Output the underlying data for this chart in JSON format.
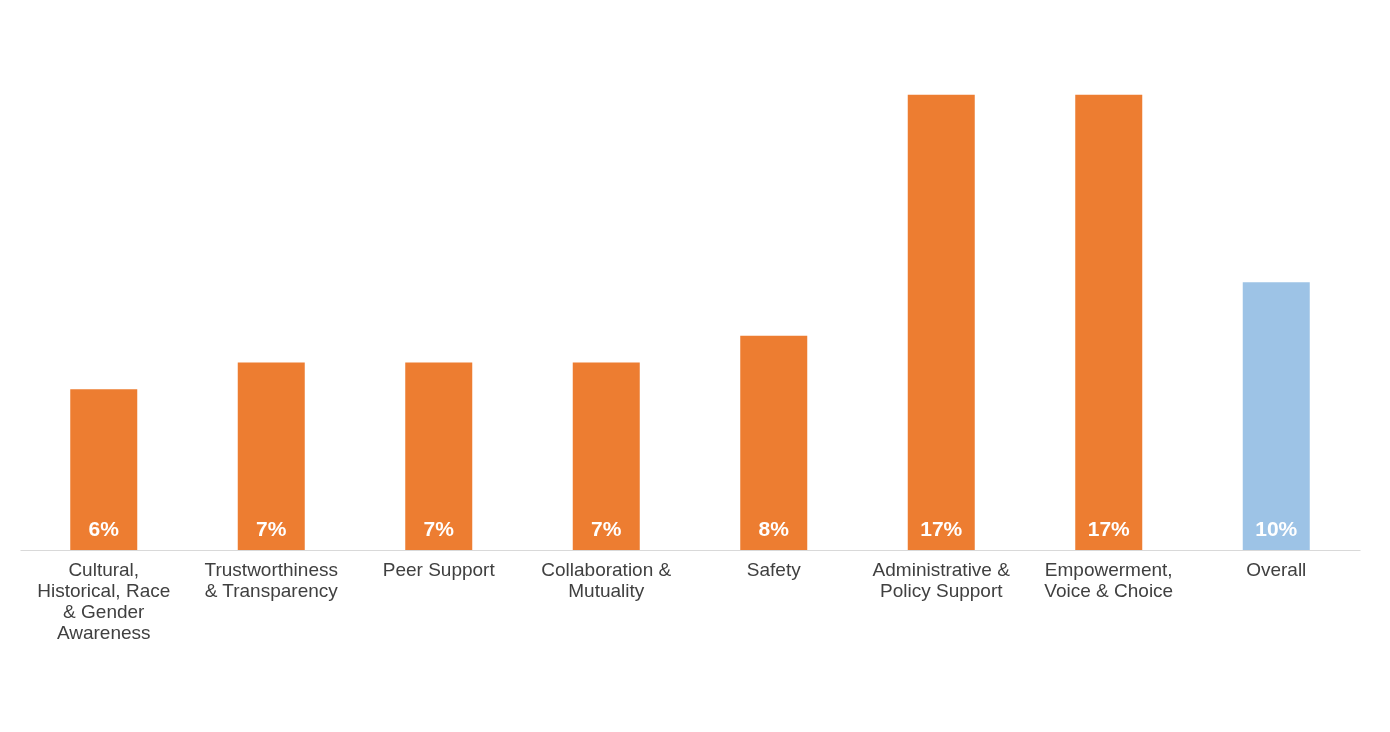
{
  "chart_data": {
    "type": "bar",
    "categories": [
      "Cultural, Historical, Race & Gender Awareness",
      "Trustworthiness & Transparency",
      "Peer Support",
      "Collaboration & Mutuality",
      "Safety",
      "Administrative & Policy Support",
      "Empowerment, Voice & Choice",
      "Overall"
    ],
    "values": [
      6,
      7,
      7,
      7,
      8,
      17,
      17,
      10
    ],
    "value_labels": [
      "6%",
      "7%",
      "7%",
      "7%",
      "8%",
      "17%",
      "17%",
      "10%"
    ],
    "colors": [
      "#ed7d31",
      "#ed7d31",
      "#ed7d31",
      "#ed7d31",
      "#ed7d31",
      "#ed7d31",
      "#ed7d31",
      "#9dc3e6"
    ]
  }
}
